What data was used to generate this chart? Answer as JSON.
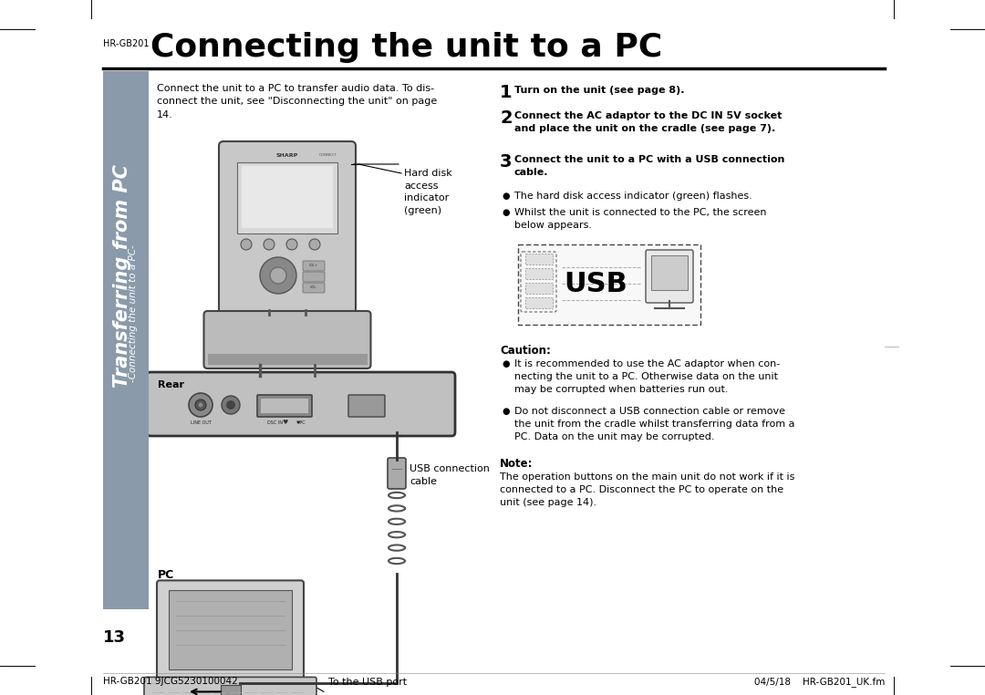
{
  "bg_color": "#ffffff",
  "sidebar_color": "#8a9aaa",
  "text_color": "#000000",
  "header_model": "HR-GB201",
  "header_title": "Connecting the unit to a PC",
  "sidebar_text_line1": "Transferring from PC",
  "sidebar_text_line2": "-Connecting the unit to a PC-",
  "intro_text": "Connect the unit to a PC to transfer audio data. To dis-\nconnect the unit, see \"Disconnecting the unit\" on page\n14.",
  "label_hard_disk": "Hard disk\naccess\nindicator\n(green)",
  "label_rear": "Rear",
  "label_usb_conn": "USB connection\ncable",
  "label_pc": "PC",
  "label_usb_port": "To the USB port",
  "page_number": "13",
  "step1": "Turn on the unit (see page 8).",
  "step2": "Connect the AC adaptor to the DC IN 5V socket\nand place the unit on the cradle (see page 7).",
  "step3": "Connect the unit to a PC with a USB connection\ncable.",
  "bullet1": "The hard disk access indicator (green) flashes.",
  "bullet2": "Whilst the unit is connected to the PC, the screen\nbelow appears.",
  "caution_title": "Caution:",
  "caution1": "It is recommended to use the AC adaptor when con-\nnecting the unit to a PC. Otherwise data on the unit\nmay be corrupted when batteries run out.",
  "caution2": "Do not disconnect a USB connection cable or remove\nthe unit from the cradle whilst transferring data from a\nPC. Data on the unit may be corrupted.",
  "note_title": "Note:",
  "note_text": "The operation buttons on the main unit do not work if it is\nconnected to a PC. Disconnect the PC to operate on the\nunit (see page 14).",
  "footer_left": "HR-GB201 9JCG5230100042",
  "footer_right": "04/5/18    HR-GB201_UK.fm"
}
